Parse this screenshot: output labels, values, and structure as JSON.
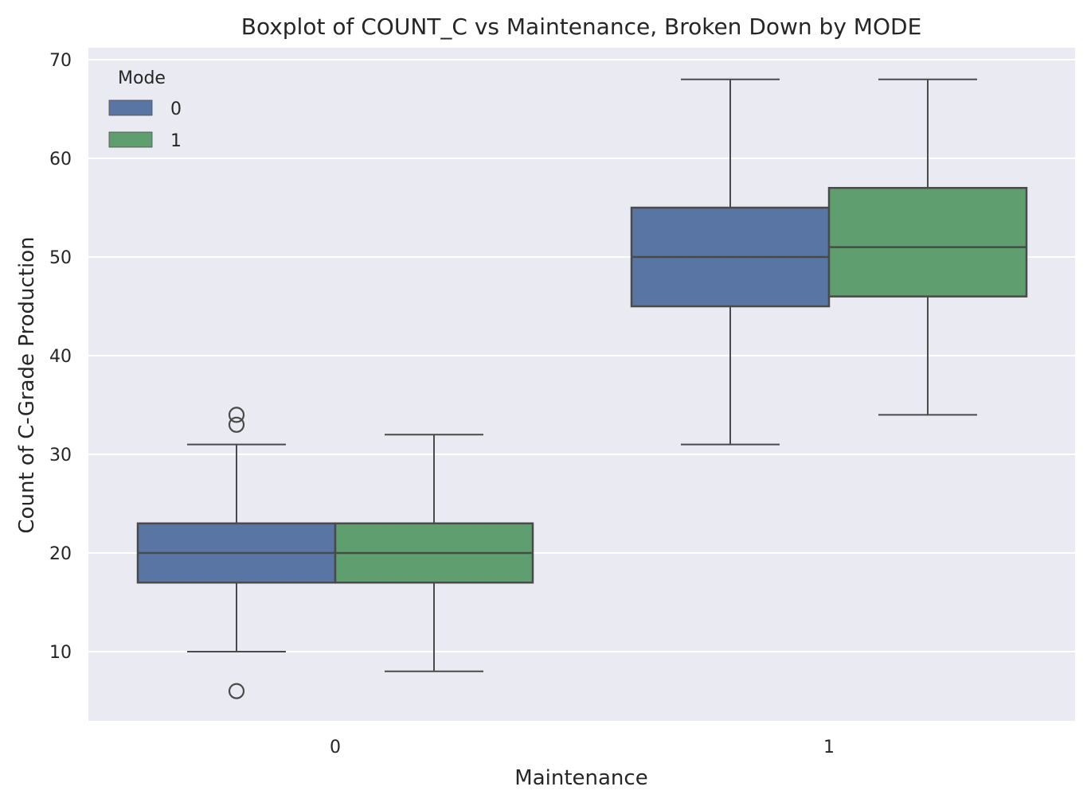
{
  "chart_data": {
    "type": "box",
    "title": "Boxplot of COUNT_C vs Maintenance, Broken Down by MODE",
    "xlabel": "Maintenance",
    "ylabel": "Count of C-Grade Production",
    "categories": [
      "0",
      "1"
    ],
    "ylim": [
      3,
      71
    ],
    "yticks": [
      10,
      20,
      30,
      40,
      50,
      60,
      70
    ],
    "grid": true,
    "legend": {
      "title": "Mode",
      "placement": "top-left"
    },
    "colors": {
      "background": "#eaeaf2",
      "grid": "#ffffff",
      "line": "#4a4a4a"
    },
    "series": [
      {
        "name": "0",
        "color": "#5875a4",
        "boxes": [
          {
            "category": "0",
            "whisker_low": 10,
            "q1": 17,
            "median": 20,
            "q3": 23,
            "whisker_high": 31,
            "outliers": [
              6,
              33,
              34
            ]
          },
          {
            "category": "1",
            "whisker_low": 31,
            "q1": 45,
            "median": 50,
            "q3": 55,
            "whisker_high": 68,
            "outliers": []
          }
        ]
      },
      {
        "name": "1",
        "color": "#5f9e6e",
        "boxes": [
          {
            "category": "0",
            "whisker_low": 8,
            "q1": 17,
            "median": 20,
            "q3": 23,
            "whisker_high": 32,
            "outliers": []
          },
          {
            "category": "1",
            "whisker_low": 34,
            "q1": 46,
            "median": 51,
            "q3": 57,
            "whisker_high": 68,
            "outliers": []
          }
        ]
      }
    ]
  }
}
